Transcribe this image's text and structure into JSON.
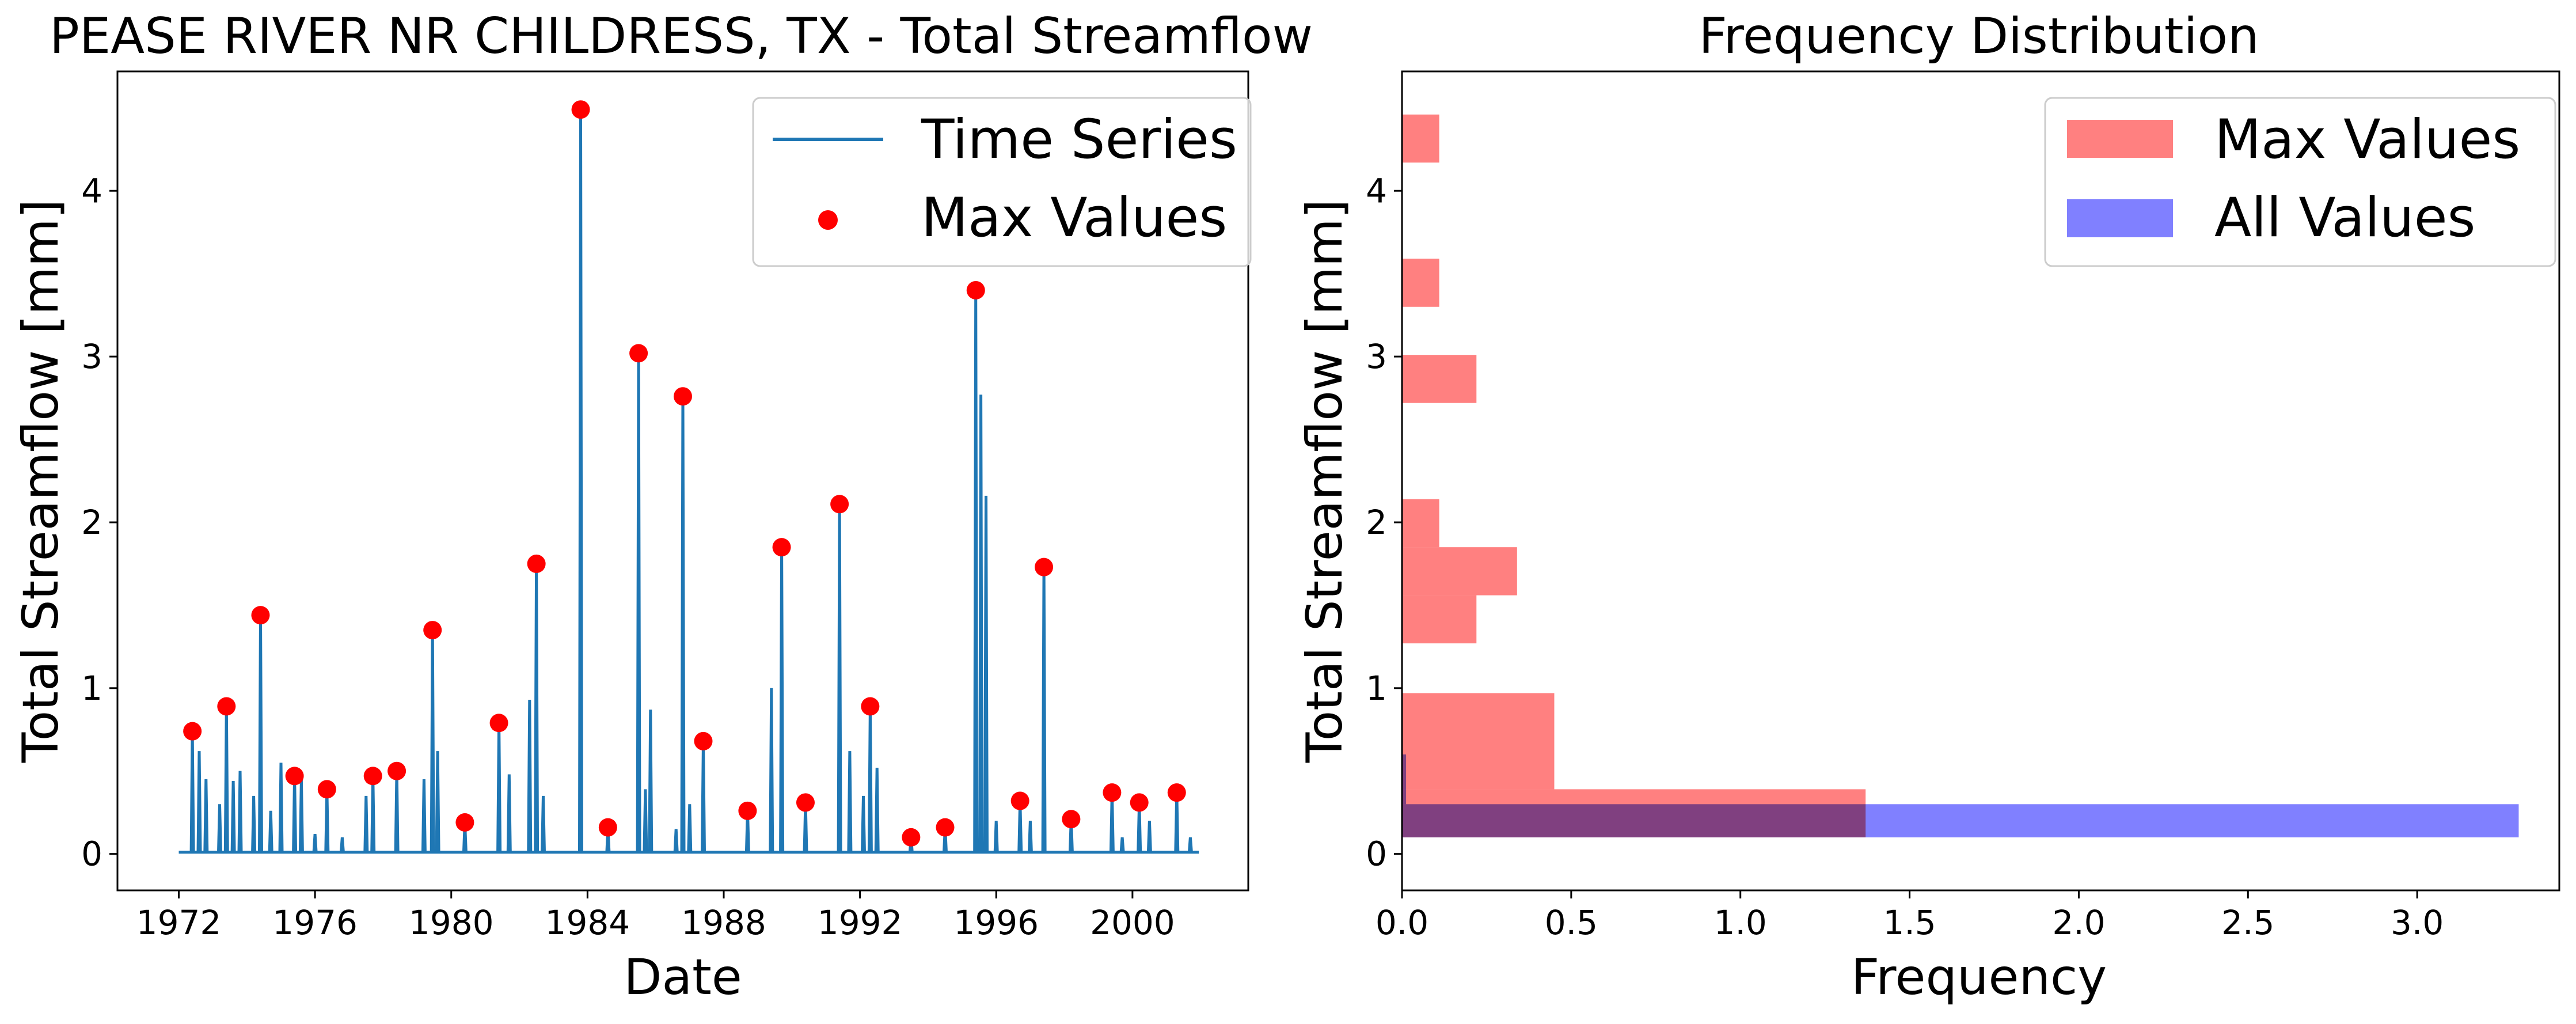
{
  "chart_data": [
    {
      "type": "line",
      "title": "PEASE RIVER NR CHILDRESS, TX - Total Streamflow",
      "xlabel": "Date",
      "ylabel": "Total Streamflow [mm]",
      "xlim": [
        1970.2,
        2003.4
      ],
      "ylim": [
        -0.22,
        4.72
      ],
      "xticks": [
        "1972",
        "1976",
        "1980",
        "1984",
        "1988",
        "1992",
        "1996",
        "2000"
      ],
      "yticks": [
        "0",
        "1",
        "2",
        "3",
        "4"
      ],
      "legend": "top-right",
      "series": [
        {
          "name": "Time Series",
          "kind": "line",
          "color": "#1f77b4",
          "spikes": [
            [
              1972.4,
              0.74
            ],
            [
              1972.6,
              0.62
            ],
            [
              1972.8,
              0.45
            ],
            [
              1973.2,
              0.3
            ],
            [
              1973.4,
              0.89
            ],
            [
              1973.6,
              0.44
            ],
            [
              1973.8,
              0.5
            ],
            [
              1974.2,
              0.35
            ],
            [
              1974.4,
              1.44
            ],
            [
              1974.7,
              0.26
            ],
            [
              1975.0,
              0.55
            ],
            [
              1975.4,
              0.47
            ],
            [
              1975.6,
              0.45
            ],
            [
              1976.0,
              0.12
            ],
            [
              1976.35,
              0.39
            ],
            [
              1976.8,
              0.1
            ],
            [
              1977.5,
              0.35
            ],
            [
              1977.7,
              0.47
            ],
            [
              1978.4,
              0.5
            ],
            [
              1979.2,
              0.45
            ],
            [
              1979.45,
              1.35
            ],
            [
              1979.6,
              0.62
            ],
            [
              1980.4,
              0.19
            ],
            [
              1981.4,
              0.79
            ],
            [
              1981.7,
              0.48
            ],
            [
              1982.3,
              0.93
            ],
            [
              1982.5,
              1.75
            ],
            [
              1982.7,
              0.35
            ],
            [
              1983.8,
              4.49
            ],
            [
              1984.6,
              0.16
            ],
            [
              1985.5,
              3.02
            ],
            [
              1985.7,
              0.39
            ],
            [
              1985.85,
              0.87
            ],
            [
              1986.6,
              0.15
            ],
            [
              1986.8,
              2.76
            ],
            [
              1987.0,
              0.3
            ],
            [
              1987.4,
              0.68
            ],
            [
              1988.7,
              0.26
            ],
            [
              1989.4,
              1.0
            ],
            [
              1989.7,
              1.85
            ],
            [
              1990.4,
              0.31
            ],
            [
              1991.4,
              2.11
            ],
            [
              1991.7,
              0.62
            ],
            [
              1992.1,
              0.35
            ],
            [
              1992.3,
              0.89
            ],
            [
              1992.5,
              0.52
            ],
            [
              1993.5,
              0.1
            ],
            [
              1994.5,
              0.16
            ],
            [
              1995.4,
              3.4
            ],
            [
              1995.55,
              2.77
            ],
            [
              1995.7,
              2.16
            ],
            [
              1996.0,
              0.2
            ],
            [
              1996.7,
              0.32
            ],
            [
              1997.0,
              0.2
            ],
            [
              1997.4,
              1.73
            ],
            [
              1998.2,
              0.21
            ],
            [
              1999.4,
              0.37
            ],
            [
              1999.7,
              0.1
            ],
            [
              2000.2,
              0.31
            ],
            [
              2000.5,
              0.2
            ],
            [
              2001.3,
              0.37
            ],
            [
              2001.7,
              0.1
            ]
          ]
        },
        {
          "name": "Max Values",
          "kind": "scatter",
          "color": "#ff0000",
          "points": [
            [
              1972.4,
              0.74
            ],
            [
              1973.4,
              0.89
            ],
            [
              1974.4,
              1.44
            ],
            [
              1975.4,
              0.47
            ],
            [
              1976.35,
              0.39
            ],
            [
              1977.7,
              0.47
            ],
            [
              1978.4,
              0.5
            ],
            [
              1979.45,
              1.35
            ],
            [
              1980.4,
              0.19
            ],
            [
              1981.4,
              0.79
            ],
            [
              1982.5,
              1.75
            ],
            [
              1983.8,
              4.49
            ],
            [
              1984.6,
              0.16
            ],
            [
              1985.5,
              3.02
            ],
            [
              1986.8,
              2.76
            ],
            [
              1987.4,
              0.68
            ],
            [
              1988.7,
              0.26
            ],
            [
              1989.7,
              1.85
            ],
            [
              1990.4,
              0.31
            ],
            [
              1991.4,
              2.11
            ],
            [
              1992.3,
              0.89
            ],
            [
              1993.5,
              0.1
            ],
            [
              1994.5,
              0.16
            ],
            [
              1995.4,
              3.4
            ],
            [
              1996.7,
              0.32
            ],
            [
              1997.4,
              1.73
            ],
            [
              1998.2,
              0.21
            ],
            [
              1999.4,
              0.37
            ],
            [
              2000.2,
              0.31
            ],
            [
              2001.3,
              0.37
            ]
          ]
        }
      ]
    },
    {
      "type": "bar",
      "orientation": "horizontal",
      "title": "Frequency Distribution",
      "xlabel": "Frequency",
      "ylabel": "Total Streamflow [mm]",
      "xlim": [
        0,
        3.42
      ],
      "ylim": [
        -0.22,
        4.72
      ],
      "xticks": [
        "0.0",
        "0.5",
        "1.0",
        "1.5",
        "2.0",
        "2.5",
        "3.0"
      ],
      "yticks": [
        "0",
        "1",
        "2",
        "3",
        "4"
      ],
      "legend": "top-right",
      "series": [
        {
          "name": "Max Values",
          "color": "#ff8080",
          "bins": [
            [
              0.1,
              0.39,
              1.37
            ],
            [
              0.39,
              0.97,
              0.45
            ],
            [
              1.27,
              1.56,
              0.22
            ],
            [
              1.56,
              1.85,
              0.34
            ],
            [
              1.85,
              2.14,
              0.11
            ],
            [
              2.72,
              3.01,
              0.22
            ],
            [
              3.3,
              3.59,
              0.11
            ],
            [
              4.17,
              4.46,
              0.11
            ]
          ]
        },
        {
          "name": "All Values",
          "color": "#8080ff",
          "bins": [
            [
              0.1,
              0.3,
              3.3
            ],
            [
              0.3,
              0.6,
              0.012
            ]
          ]
        }
      ]
    }
  ]
}
